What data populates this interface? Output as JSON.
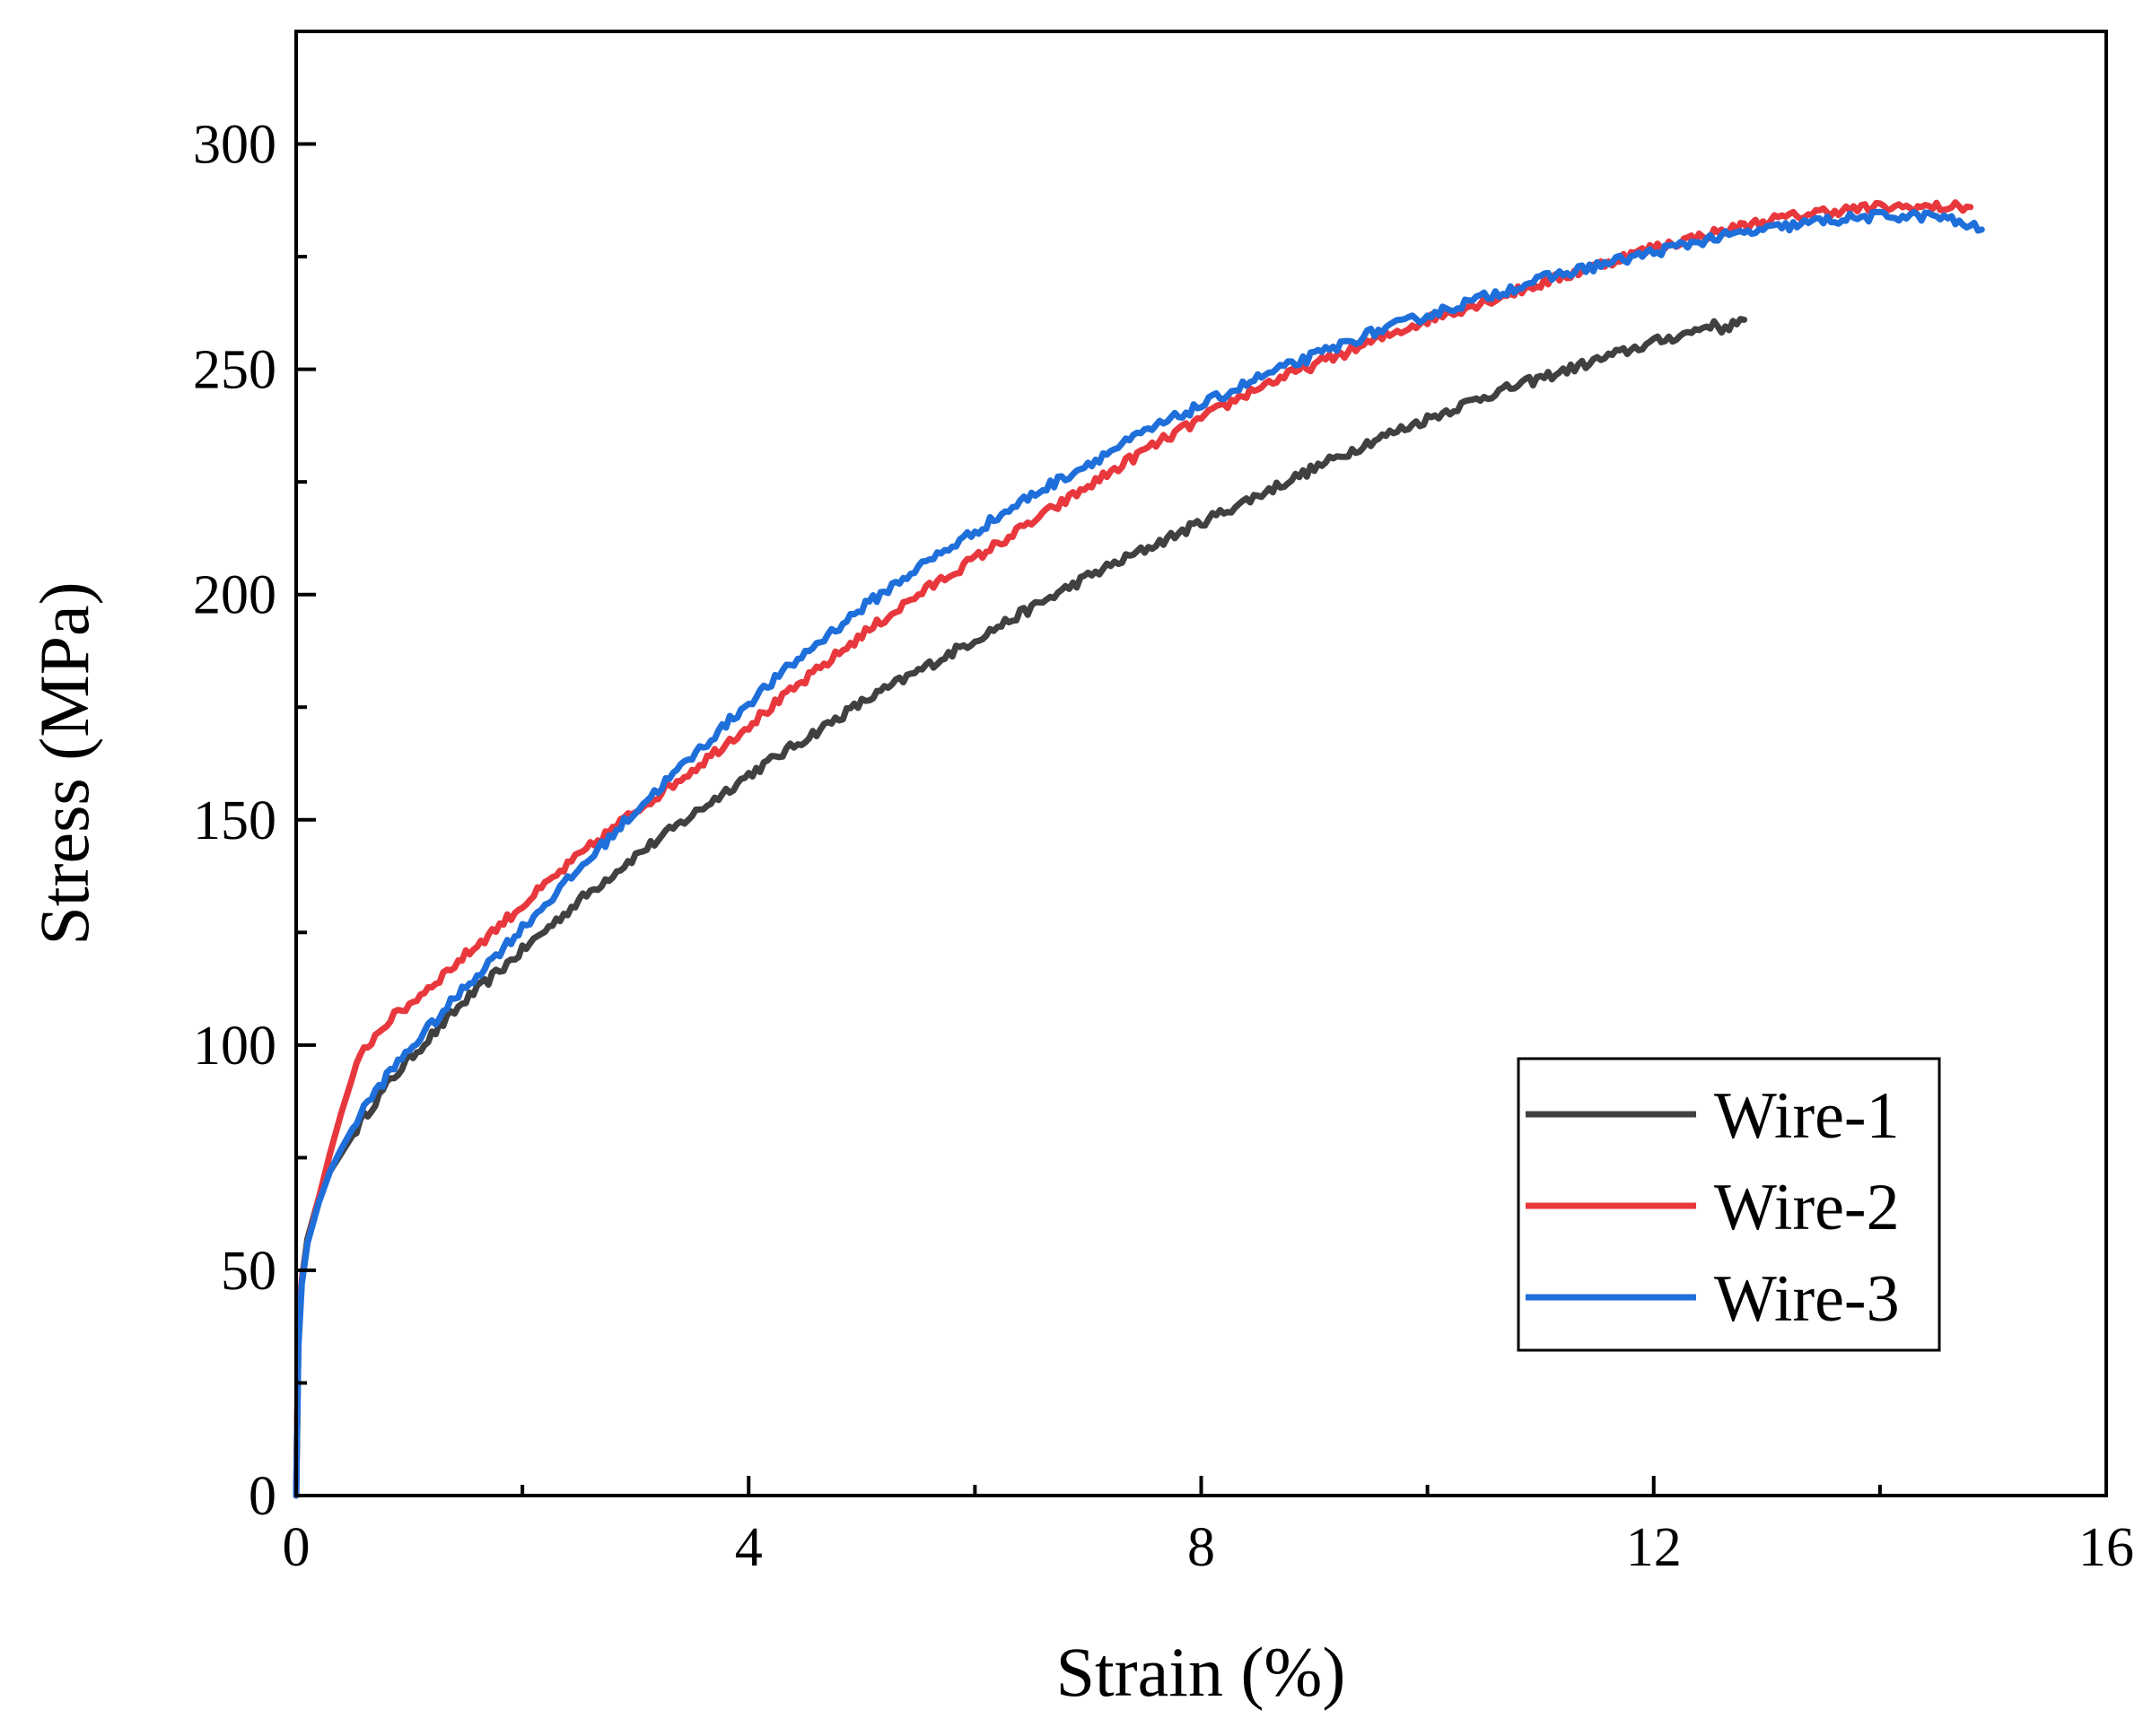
{
  "chart_data": {
    "type": "line",
    "title": "",
    "xlabel": "Strain (%)",
    "ylabel": "Stress (MPa)",
    "xlim": [
      0,
      16
    ],
    "ylim": [
      0,
      325
    ],
    "x_ticks": [
      0,
      4,
      8,
      12,
      16
    ],
    "x_minor_ticks": [
      2,
      6,
      10,
      14
    ],
    "y_ticks": [
      0,
      50,
      100,
      150,
      200,
      250,
      300
    ],
    "y_minor_ticks": [
      25,
      75,
      125,
      175,
      225,
      275
    ],
    "legend_position": "bottom-right",
    "grid": false,
    "series": [
      {
        "name": "Wire-1",
        "color": "#404040",
        "x": [
          0,
          0.02,
          0.05,
          0.1,
          0.2,
          0.3,
          0.4,
          0.6,
          0.8,
          1.0,
          1.5,
          2.0,
          2.5,
          3.0,
          3.5,
          4.0,
          4.5,
          5.0,
          5.5,
          6.0,
          6.5,
          7.0,
          7.5,
          8.0,
          8.5,
          9.0,
          9.5,
          10.0,
          10.5,
          11.0,
          11.5,
          12.0,
          12.3,
          12.5,
          12.6,
          12.8
        ],
        "y": [
          0,
          35,
          48,
          57,
          66,
          72,
          76,
          84,
          91,
          97,
          110,
          121,
          132,
          142,
          151,
          160,
          168,
          176,
          183,
          190,
          197,
          204,
          210,
          216,
          222,
          228,
          234,
          239,
          244,
          248,
          252,
          256,
          258,
          260,
          259,
          261
        ]
      },
      {
        "name": "Wire-2",
        "color": "#e8383d",
        "x": [
          0,
          0.02,
          0.05,
          0.1,
          0.2,
          0.3,
          0.4,
          0.5,
          0.6,
          0.8,
          1.0,
          1.5,
          2.0,
          2.5,
          3.0,
          3.5,
          4.0,
          4.5,
          5.0,
          5.5,
          6.0,
          6.5,
          7.0,
          7.5,
          8.0,
          8.5,
          9.0,
          9.5,
          10.0,
          10.5,
          11.0,
          11.5,
          12.0,
          12.5,
          13.0,
          13.5,
          14.0,
          14.5,
          14.8
        ],
        "y": [
          0,
          38,
          48,
          56,
          66,
          76,
          85,
          93,
          99,
          105,
          109,
          120,
          131,
          142,
          152,
          161,
          171,
          181,
          191,
          200,
          208,
          216,
          224,
          232,
          239,
          246,
          251,
          256,
          261,
          265,
          269,
          273,
          277,
          280,
          283,
          285,
          286,
          286,
          286
        ]
      },
      {
        "name": "Wire-3",
        "color": "#1f6fdb",
        "x": [
          0,
          0.02,
          0.05,
          0.1,
          0.2,
          0.3,
          0.4,
          0.6,
          0.8,
          1.0,
          1.5,
          2.0,
          2.5,
          3.0,
          3.5,
          4.0,
          4.5,
          5.0,
          5.5,
          6.0,
          6.5,
          7.0,
          7.5,
          8.0,
          8.5,
          9.0,
          9.5,
          10.0,
          10.5,
          11.0,
          11.5,
          12.0,
          12.5,
          13.0,
          13.5,
          14.0,
          14.5,
          14.9
        ],
        "y": [
          0,
          33,
          47,
          56,
          65,
          72,
          77,
          86,
          93,
          99,
          113,
          126,
          139,
          152,
          164,
          176,
          187,
          197,
          206,
          214,
          222,
          229,
          236,
          242,
          248,
          253,
          258,
          262,
          266,
          270,
          273,
          276,
          279,
          281,
          283,
          284,
          284,
          281
        ]
      }
    ]
  }
}
